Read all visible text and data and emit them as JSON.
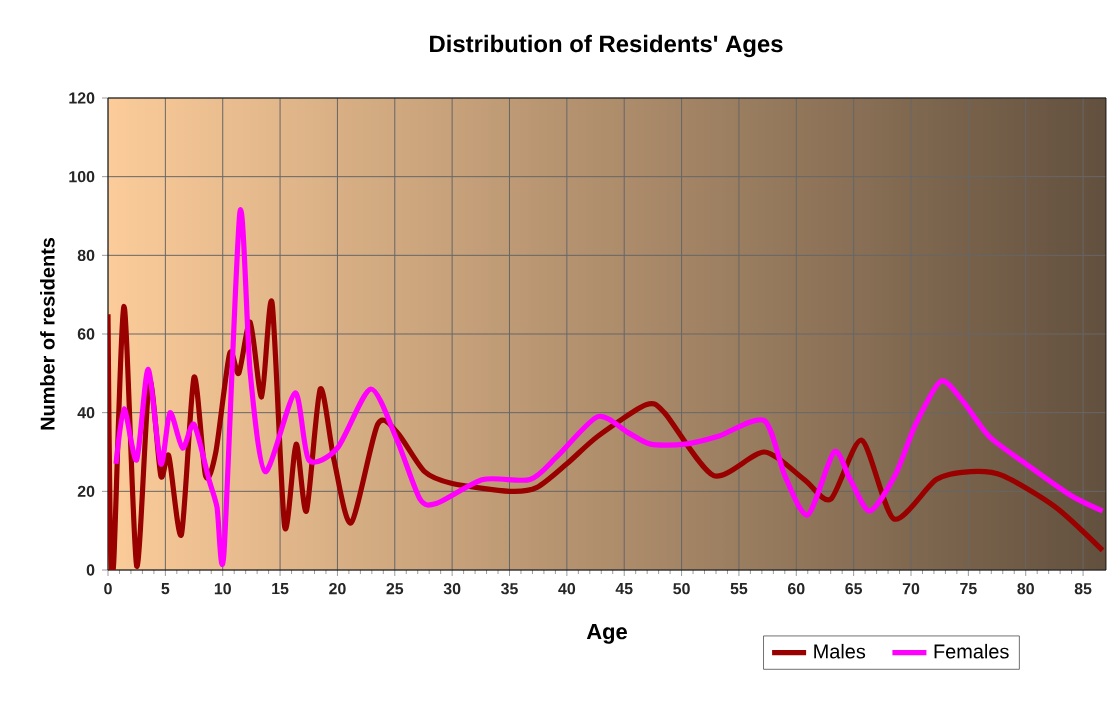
{
  "chart_data": {
    "type": "line",
    "title": "Distribution of Residents' Ages",
    "xlabel": "Age",
    "ylabel": "Number of residents",
    "xlim": [
      0,
      87
    ],
    "ylim": [
      0,
      120
    ],
    "xticks": [
      0,
      5,
      10,
      15,
      20,
      25,
      30,
      35,
      40,
      45,
      50,
      55,
      60,
      65,
      70,
      75,
      80,
      85
    ],
    "yticks": [
      0,
      20,
      40,
      60,
      80,
      100,
      120
    ],
    "grid": true,
    "legend": "bottom right",
    "series": [
      {
        "name": "Males",
        "color": "#990000",
        "x": [
          0,
          0.2,
          0.5,
          1.4,
          2.5,
          3.6,
          4.6,
          5.3,
          6.4,
          7.5,
          8.5,
          9.4,
          10.6,
          11.4,
          12.4,
          13.4,
          14.3,
          15.4,
          16.4,
          17.3,
          18.5,
          19.7,
          21.2,
          23.5,
          25.2,
          27.6,
          30,
          35,
          37.4,
          40,
          42.7,
          46.9,
          48.5,
          52.8,
          57.2,
          60.7,
          63,
          65.7,
          68.5,
          72.2,
          75.2,
          78,
          82.6,
          86.7
        ],
        "values": [
          65,
          8,
          2,
          67,
          1,
          48,
          24,
          29,
          9,
          49,
          24,
          30,
          55,
          50,
          63,
          44,
          68,
          11,
          32,
          15,
          46,
          28,
          12,
          37,
          35,
          25,
          22,
          20,
          21,
          27,
          34,
          42,
          40,
          24,
          30,
          23,
          18,
          33,
          13,
          23,
          25,
          24,
          16,
          5
        ]
      },
      {
        "name": "Females",
        "color": "#ff00ff",
        "x": [
          0.7,
          1.4,
          2.5,
          3.5,
          4.6,
          5.4,
          6.5,
          7.5,
          8.8,
          9.5,
          10.1,
          11.5,
          12.4,
          13.7,
          16.3,
          17.5,
          20,
          22.9,
          25.2,
          27.2,
          28.7,
          32.7,
          36.8,
          39.2,
          42.7,
          45.3,
          47.3,
          50.3,
          53.2,
          57.2,
          59,
          61,
          63.3,
          64.7,
          66.4,
          68.6,
          70.4,
          72.6,
          74.5,
          76.8,
          80,
          83.9,
          86.7
        ],
        "values": [
          27,
          41,
          28,
          51,
          27,
          40,
          31,
          37,
          23,
          16,
          4,
          91,
          50,
          25,
          45,
          28,
          31,
          46,
          33,
          18,
          17,
          23,
          23,
          29,
          39,
          35,
          32,
          32,
          34,
          38,
          24,
          14,
          30,
          23,
          15,
          24,
          37,
          48,
          43,
          34,
          27,
          19,
          15
        ]
      }
    ]
  }
}
